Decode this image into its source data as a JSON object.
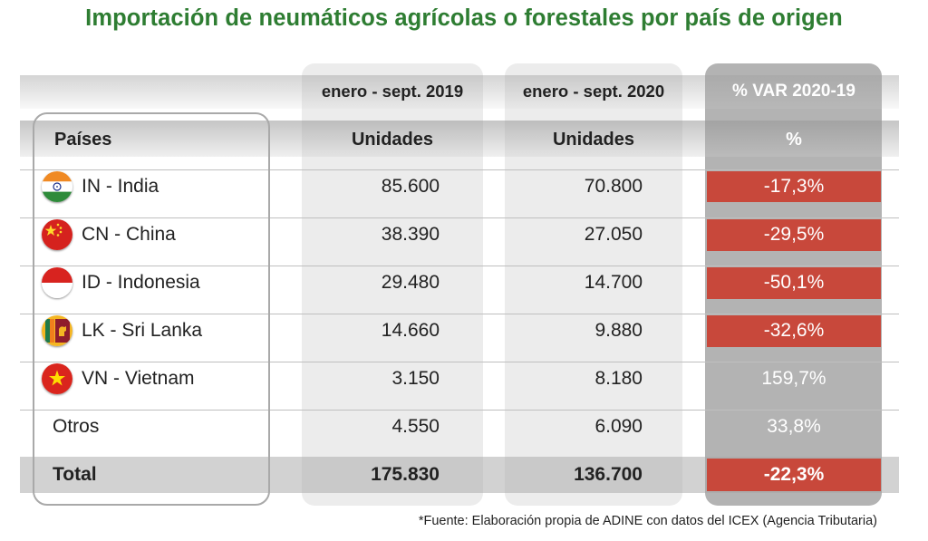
{
  "title": "Importación de neumáticos agrícolas o forestales por país de origen",
  "header": {
    "period_2019": "enero - sept. 2019",
    "period_2020": "enero - sept. 2020",
    "var_period": "% VAR 2020-19",
    "country": "Países",
    "units_2019": "Unidades",
    "units_2020": "Unidades",
    "pct": "%"
  },
  "rows": [
    {
      "country": "IN - India",
      "flag": "india-flag-icon",
      "u2019": "85.600",
      "u2020": "70.800",
      "var": "-17,3%",
      "negative": true
    },
    {
      "country": "CN - China",
      "flag": "china-flag-icon",
      "u2019": "38.390",
      "u2020": "27.050",
      "var": "-29,5%",
      "negative": true
    },
    {
      "country": "ID - Indonesia",
      "flag": "indonesia-flag-icon",
      "u2019": "29.480",
      "u2020": "14.700",
      "var": "-50,1%",
      "negative": true
    },
    {
      "country": "LK - Sri Lanka",
      "flag": "sri-lanka-flag-icon",
      "u2019": "14.660",
      "u2020": "9.880",
      "var": "-32,6%",
      "negative": true
    },
    {
      "country": "VN - Vietnam",
      "flag": "vietnam-flag-icon",
      "u2019": "3.150",
      "u2020": "8.180",
      "var": "159,7%",
      "negative": false
    },
    {
      "country": "Otros",
      "flag": "",
      "u2019": "4.550",
      "u2020": "6.090",
      "var": "33,8%",
      "negative": false
    }
  ],
  "total": {
    "label": "Total",
    "u2019": "175.830",
    "u2020": "136.700",
    "var": "-22,3%",
    "negative": true
  },
  "source": "*Fuente: Elaboración propia de ADINE con datos del ICEX (Agencia Tributaria)",
  "colors": {
    "title": "#2e7d32",
    "negative": "#c8483b",
    "var_column": "#b3b3b3"
  },
  "chart_data": {
    "type": "table",
    "title": "Importación de neumáticos agrícolas o forestales por país de origen",
    "columns": [
      "Países",
      "enero - sept. 2019 Unidades",
      "enero - sept. 2020 Unidades",
      "% VAR 2020-19"
    ],
    "categories": [
      "IN - India",
      "CN - China",
      "ID - Indonesia",
      "LK - Sri Lanka",
      "VN - Vietnam",
      "Otros",
      "Total"
    ],
    "series": [
      {
        "name": "enero - sept. 2019",
        "values": [
          85600,
          38390,
          29480,
          14660,
          3150,
          4550,
          175830
        ]
      },
      {
        "name": "enero - sept. 2020",
        "values": [
          70800,
          27050,
          14700,
          9880,
          8180,
          6090,
          136700
        ]
      },
      {
        "name": "% VAR 2020-19",
        "values": [
          -17.3,
          -29.5,
          -50.1,
          -32.6,
          159.7,
          33.8,
          -22.3
        ]
      }
    ]
  }
}
